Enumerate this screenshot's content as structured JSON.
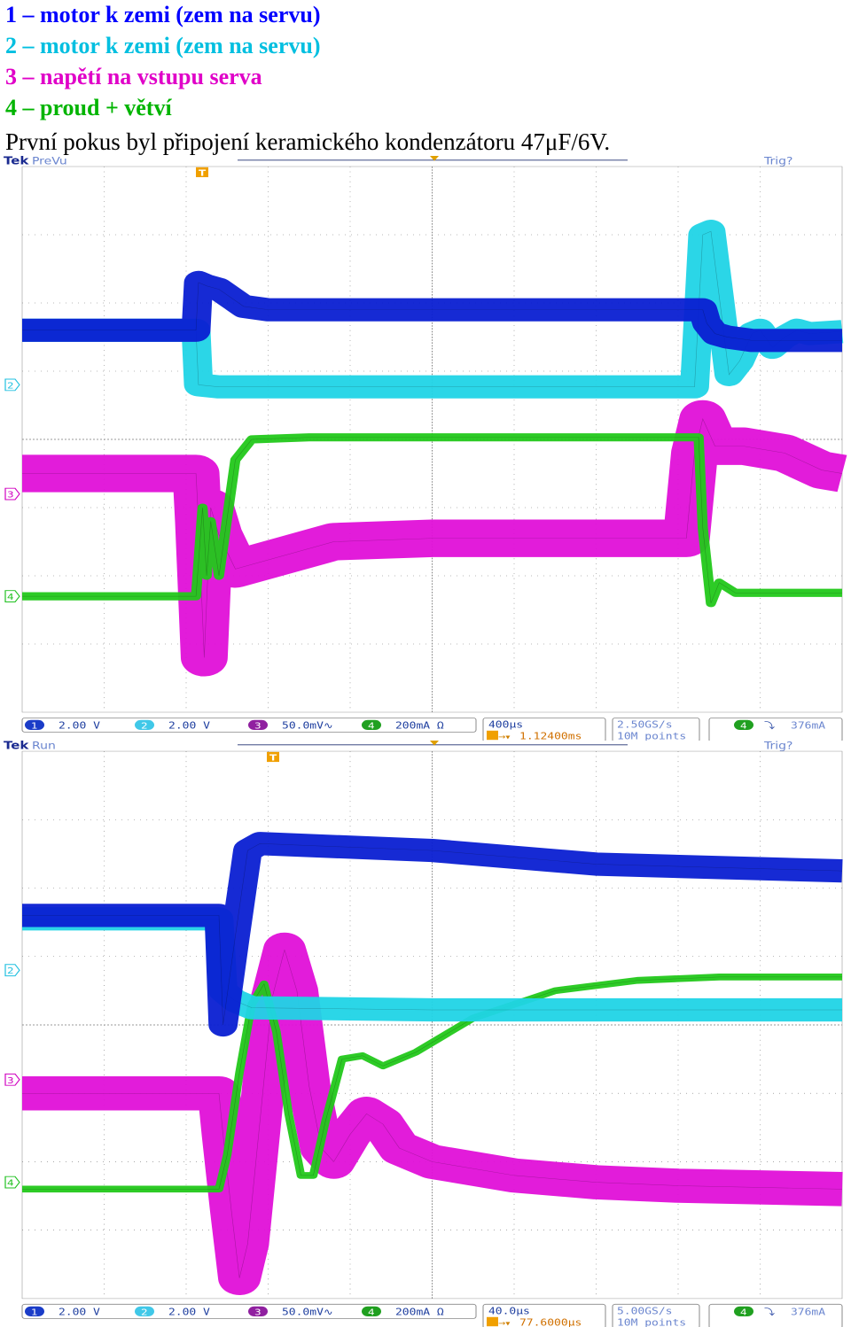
{
  "legend": [
    {
      "text": "1 – motor k zemi (zem na servu)",
      "color": "#0000ff"
    },
    {
      "text": "2 – motor k zemi (zem na servu)",
      "color": "#00bfe0"
    },
    {
      "text": "3 – napětí na vstupu serva",
      "color": "#e000c8"
    },
    {
      "text": "4 – proud + větví",
      "color": "#00b400"
    }
  ],
  "caption": "První pokus byl připojení keramického kondenzátoru 47μF/6V.",
  "colors": {
    "ch1": "#0a1fd2",
    "ch2": "#20d4e6",
    "ch3": "#e010d8",
    "ch4": "#22c81a",
    "bezel": "#1e3cc0",
    "label": "#6b86cf",
    "grid": "#777777"
  },
  "chart_data": [
    {
      "type": "line",
      "title": "Tek PreVu",
      "brand": "Tek",
      "status": "PreVu",
      "trig_status": "Trig?",
      "trigger_marker": "T",
      "channel_markers": [
        "2",
        "3",
        "4"
      ],
      "grid": {
        "x_divisions": 10,
        "y_divisions": 8,
        "on": true
      },
      "x_unit": "div",
      "y_unit": "div",
      "xlim": [
        -5,
        5
      ],
      "ylim": [
        -4,
        4
      ],
      "bottom_bar": {
        "ch1": {
          "num": "1",
          "scale": "2.00 V"
        },
        "ch2": {
          "num": "2",
          "scale": "2.00 V"
        },
        "ch3": {
          "num": "3",
          "scale": "50.0mV∿"
        },
        "ch4": {
          "num": "4",
          "scale": "200mA Ω"
        },
        "timebase": "400μs",
        "position": "1.12400ms",
        "sample_rate": "2.50GS/s",
        "record_length": "10M points",
        "trigger_ch": "4",
        "trigger_slope": "⤵",
        "trigger_level": "376mA"
      },
      "series": [
        {
          "key": "ch1",
          "x": [
            -5,
            -2.88,
            -2.85,
            -2.75,
            -2.6,
            -2.3,
            -2.0,
            2.0,
            3.3,
            3.35,
            3.45,
            3.6,
            3.9,
            4.3,
            5
          ],
          "y": [
            1.6,
            1.6,
            2.3,
            2.25,
            2.2,
            1.95,
            1.9,
            1.9,
            1.9,
            1.7,
            1.55,
            1.5,
            1.45,
            1.45,
            1.45
          ],
          "band": 0.34
        },
        {
          "key": "ch2",
          "x": [
            -5,
            -2.88,
            -2.85,
            -2.6,
            0,
            3.2,
            3.3,
            3.4,
            3.5,
            3.62,
            3.75,
            3.9,
            4.0,
            4.15,
            4.3,
            4.45,
            4.6,
            5
          ],
          "y": [
            1.6,
            1.6,
            0.8,
            0.77,
            0.77,
            0.77,
            3.0,
            3.05,
            2.1,
            0.95,
            1.15,
            1.55,
            1.6,
            1.35,
            1.5,
            1.6,
            1.55,
            1.58
          ],
          "band": 0.34
        },
        {
          "key": "ch3",
          "x": [
            -5,
            -2.88,
            -2.85,
            -2.78,
            -2.7,
            -2.6,
            -2.4,
            -1.2,
            0,
            3.1,
            3.2,
            3.3,
            3.45,
            3.8,
            4.3,
            4.75,
            5
          ],
          "y": [
            -0.5,
            -0.5,
            -1.2,
            -3.2,
            -1.0,
            -1.4,
            -1.9,
            -1.5,
            -1.45,
            -1.45,
            -0.2,
            0.3,
            -0.1,
            -0.1,
            -0.2,
            -0.45,
            -0.5
          ],
          "band": 0.55
        },
        {
          "key": "ch4",
          "x": [
            -5,
            -2.88,
            -2.8,
            -2.75,
            -2.7,
            -2.6,
            -2.4,
            -2.2,
            -1.5,
            3.25,
            3.3,
            3.4,
            3.5,
            3.7,
            5
          ],
          "y": [
            -2.3,
            -2.3,
            -1.0,
            -2.0,
            -1.2,
            -2.0,
            -0.3,
            0.0,
            0.03,
            0.03,
            -1.3,
            -2.4,
            -2.1,
            -2.25,
            -2.25
          ],
          "band": 0.12
        }
      ]
    },
    {
      "type": "line",
      "title": "Tek Run",
      "brand": "Tek",
      "status": "Run",
      "trig_status": "Trig?",
      "trigger_marker": "T",
      "channel_markers": [
        "2",
        "3",
        "4"
      ],
      "grid": {
        "x_divisions": 10,
        "y_divisions": 8,
        "on": true
      },
      "x_unit": "div",
      "y_unit": "div",
      "xlim": [
        -5,
        5
      ],
      "ylim": [
        -4,
        4
      ],
      "bottom_bar": {
        "ch1": {
          "num": "1",
          "scale": "2.00 V"
        },
        "ch2": {
          "num": "2",
          "scale": "2.00 V"
        },
        "ch3": {
          "num": "3",
          "scale": "50.0mV∿"
        },
        "ch4": {
          "num": "4",
          "scale": "200mA Ω"
        },
        "timebase": "40.0μs",
        "position": "77.6000μs",
        "sample_rate": "5.00GS/s",
        "record_length": "10M points",
        "trigger_ch": "4",
        "trigger_slope": "⤵",
        "trigger_level": "376mA"
      },
      "series": [
        {
          "key": "ch1",
          "x": [
            -5,
            -2.6,
            -2.55,
            -2.4,
            -2.25,
            -2.1,
            0,
            2.0,
            5
          ],
          "y": [
            1.6,
            1.6,
            0.0,
            1.3,
            2.55,
            2.65,
            2.55,
            2.35,
            2.25
          ],
          "band": 0.34
        },
        {
          "key": "ch2",
          "x": [
            -5,
            -2.6,
            -2.55,
            -2.4,
            -2.2,
            0,
            5
          ],
          "y": [
            1.55,
            1.55,
            0.5,
            0.35,
            0.25,
            0.22,
            0.22
          ],
          "band": 0.34
        },
        {
          "key": "ch3",
          "x": [
            -5,
            -2.6,
            -2.55,
            -2.45,
            -2.35,
            -2.25,
            -2.1,
            -1.95,
            -1.8,
            -1.65,
            -1.5,
            -1.35,
            -1.2,
            -1.0,
            -0.8,
            -0.6,
            -0.4,
            0,
            1,
            2,
            3,
            5
          ],
          "y": [
            -1.0,
            -1.0,
            -1.6,
            -2.7,
            -3.7,
            -3.2,
            -1.4,
            0.4,
            1.1,
            0.5,
            -0.9,
            -1.8,
            -2.0,
            -1.6,
            -1.3,
            -1.45,
            -1.8,
            -2.0,
            -2.2,
            -2.3,
            -2.35,
            -2.4
          ],
          "band": 0.5
        },
        {
          "key": "ch4",
          "x": [
            -5,
            -2.6,
            -2.5,
            -2.35,
            -2.2,
            -2.05,
            -1.9,
            -1.75,
            -1.6,
            -1.45,
            -1.3,
            -1.1,
            -0.85,
            -0.6,
            -0.2,
            0.5,
            1.5,
            2.5,
            3.5,
            5
          ],
          "y": [
            -2.4,
            -2.4,
            -1.9,
            -0.7,
            0.3,
            0.6,
            -0.1,
            -1.3,
            -2.2,
            -2.2,
            -1.4,
            -0.5,
            -0.45,
            -0.6,
            -0.4,
            0.1,
            0.5,
            0.65,
            0.7,
            0.7
          ],
          "band": 0.1
        }
      ]
    }
  ]
}
